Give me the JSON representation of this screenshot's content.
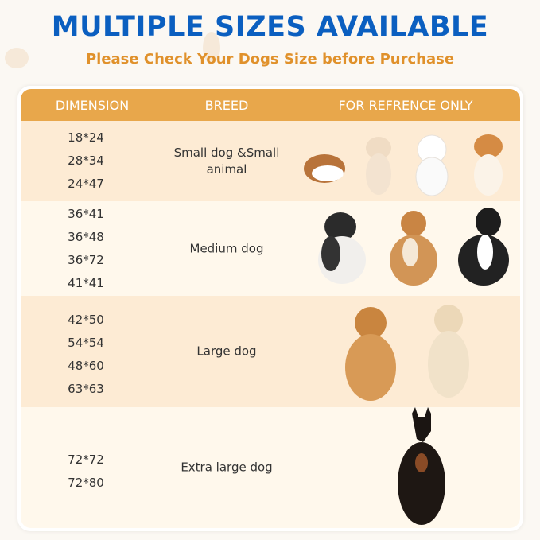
{
  "header": {
    "title": "MULTIPLE SIZES AVAILABLE",
    "subtitle": "Please Check Your Dogs Size before Purchase"
  },
  "table": {
    "columns": [
      "DIMENSION",
      "BREED",
      "FOR REFRENCE ONLY"
    ],
    "rows": [
      {
        "dimensions": [
          "18*24",
          "28*34",
          "24*47"
        ],
        "breed": "Small dog &Small animal",
        "pictures": [
          "guinea-pig",
          "chihuahua",
          "bichon-frise",
          "corgi-puppy"
        ]
      },
      {
        "dimensions": [
          "36*41",
          "36*48",
          "36*72",
          "41*41"
        ],
        "breed": "Medium dog",
        "pictures": [
          "french-bulldog",
          "shiba-inu",
          "border-collie"
        ]
      },
      {
        "dimensions": [
          "42*50",
          "54*54",
          "48*60",
          "63*63"
        ],
        "breed": "Large dog",
        "pictures": [
          "golden-retriever",
          "labrador"
        ]
      },
      {
        "dimensions": [
          "72*72",
          "72*80"
        ],
        "breed": "Extra large dog",
        "pictures": [
          "doberman"
        ]
      }
    ]
  },
  "colors": {
    "title": "#0b5fc0",
    "subtitle": "#e0912b",
    "header_bg": "#e8a74b",
    "row_dark": "#fdebd4",
    "row_light": "#fff8ec"
  }
}
